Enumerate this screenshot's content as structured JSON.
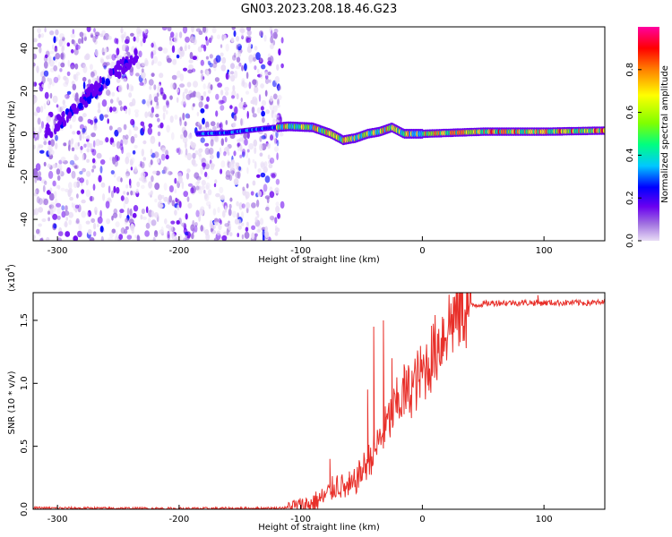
{
  "figure": {
    "title": "GN03.2023.208.18.46.G23"
  },
  "chart_data": [
    {
      "type": "heatmap",
      "xlabel": "Height of straight line (km)",
      "ylabel": "Frequency (Hz)",
      "xlim": [
        -320,
        150
      ],
      "ylim": [
        -50,
        50
      ],
      "xticks": [
        -300,
        -200,
        -100,
        0,
        100
      ],
      "yticks": [
        -40,
        -20,
        0,
        20,
        40
      ],
      "colorbar": {
        "label": "Normalized spectral amplitude",
        "range": [
          0.0,
          1.0
        ],
        "ticks": [
          "0.0",
          "0.2",
          "0.4",
          "0.6",
          "0.8"
        ],
        "colors": [
          "#e8dcf5",
          "#a070e0",
          "#6a00f0",
          "#0000ff",
          "#00c8ff",
          "#00ff80",
          "#80ff00",
          "#ffff00",
          "#ff8000",
          "#ff0000",
          "#ff00a0"
        ]
      },
      "description_series": [
        {
          "name": "signal band",
          "x": [
            -185,
            -160,
            -130,
            -110,
            -90,
            -75,
            -65,
            -55,
            -45,
            -35,
            -25,
            -15,
            0,
            50,
            100,
            150
          ],
          "y": [
            0.0,
            0.5,
            2.5,
            3.5,
            3.0,
            0.0,
            -3.0,
            -2.0,
            0.0,
            1.0,
            3.0,
            0.0,
            0.0,
            1.0,
            1.0,
            1.5
          ]
        },
        {
          "name": "diagonal streak",
          "x": [
            -310,
            -290,
            -270,
            -250,
            -235
          ],
          "y": [
            0,
            10,
            20,
            30,
            37
          ]
        }
      ]
    },
    {
      "type": "line",
      "xlabel": "Height of straight line (km)",
      "ylabel": "SNR (10 * v/v)",
      "multiplier": "(x10",
      "multiplier_exp": "4",
      "multiplier_close": ")",
      "xlim": [
        -320,
        150
      ],
      "ylim": [
        0,
        1.72
      ],
      "xticks": [
        -300,
        -200,
        -100,
        0,
        100
      ],
      "yticks": [
        "0.0",
        "0.5",
        "1.0",
        "1.5"
      ],
      "color": "#e8302a",
      "series_profile": {
        "x": [
          -320,
          -200,
          -120,
          -100,
          -90,
          -80,
          -70,
          -60,
          -50,
          -40,
          -30,
          -20,
          -10,
          0,
          10,
          20,
          30,
          40,
          60,
          100,
          150
        ],
        "y": [
          0.01,
          0.005,
          0.008,
          0.02,
          0.05,
          0.1,
          0.2,
          0.15,
          0.3,
          0.45,
          0.65,
          0.85,
          0.95,
          1.08,
          1.25,
          1.45,
          1.58,
          1.62,
          1.64,
          1.64,
          1.64
        ]
      },
      "spikes": [
        {
          "x": -76,
          "y": 0.4
        },
        {
          "x": -60,
          "y": 0.3
        },
        {
          "x": -45,
          "y": 0.95
        },
        {
          "x": -40,
          "y": 1.45
        },
        {
          "x": -32,
          "y": 1.5
        },
        {
          "x": -25,
          "y": 1.2
        },
        {
          "x": -15,
          "y": 1.15
        },
        {
          "x": 95,
          "y": 1.7
        }
      ]
    }
  ]
}
